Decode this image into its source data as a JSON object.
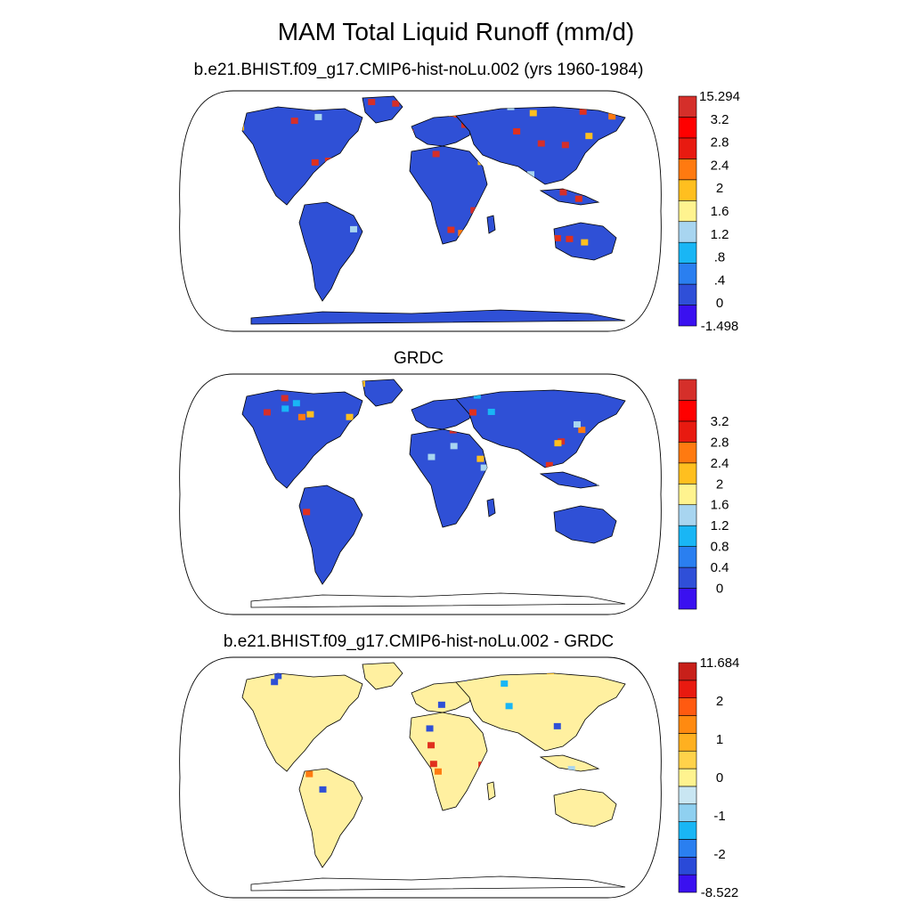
{
  "title": "MAM Total Liquid Runoff (mm/d)",
  "panels": [
    {
      "subtitle": "b.e21.BHIST.f09_g17.CMIP6-hist-noLu.002 (yrs 1960-1984)",
      "colorbar": {
        "colors": [
          "#3a10f0",
          "#2f4fd8",
          "#2a7ff0",
          "#19b6f5",
          "#a8d5f0",
          "#fff38f",
          "#ffbf1f",
          "#ff7a10",
          "#e81a10",
          "#ff0000",
          "#d52f2a"
        ],
        "labels": [
          "-1.498",
          "0",
          ".4",
          ".8",
          "1.2",
          "1.6",
          "2",
          "2.4",
          "2.8",
          "3.2",
          "15.294"
        ],
        "label_mode": "edges"
      },
      "land_base": "#2f50d6",
      "hot_colors": [
        "#e0301e",
        "#ff7a10",
        "#ffbf1f",
        "#19b6f5",
        "#a8d5f0",
        "#d52f2a"
      ],
      "antarctica_fill": true
    },
    {
      "subtitle": "GRDC",
      "colorbar": {
        "colors": [
          "#3a10f0",
          "#2f4fd8",
          "#2a7ff0",
          "#19b6f5",
          "#a8d5f0",
          "#fff38f",
          "#ffbf1f",
          "#ff7a10",
          "#e81a10",
          "#ff0000",
          "#d52f2a"
        ],
        "labels": [
          "0",
          "0.4",
          "0.8",
          "1.2",
          "1.6",
          "2",
          "2.4",
          "2.8",
          "3.2"
        ],
        "label_mode": "inner"
      },
      "land_base": "#2f50d6",
      "hot_colors": [
        "#e0301e",
        "#ff7a10",
        "#ffbf1f",
        "#19b6f5",
        "#a8d5f0",
        "#d52f2a"
      ],
      "antarctica_fill": false
    },
    {
      "subtitle": "b.e21.BHIST.f09_g17.CMIP6-hist-noLu.002 - GRDC",
      "colorbar": {
        "colors": [
          "#3a10f0",
          "#2a4ad8",
          "#2a7ff0",
          "#19b6f5",
          "#8fd0f0",
          "#c9e6f2",
          "#fff38f",
          "#ffd24a",
          "#ffb020",
          "#ff8a10",
          "#ff5a10",
          "#e81a10",
          "#c8201a"
        ],
        "labels": [
          "-8.522",
          "-2",
          "-1",
          "0",
          "1",
          "2",
          "11.684"
        ],
        "label_mode": "diff"
      },
      "land_base": "#fff0a0",
      "hot_colors": [
        "#ffbf1f",
        "#ff7a10",
        "#a8d5f0",
        "#e0301e",
        "#2f50d6",
        "#19b6f5"
      ],
      "antarctica_fill": false
    }
  ]
}
